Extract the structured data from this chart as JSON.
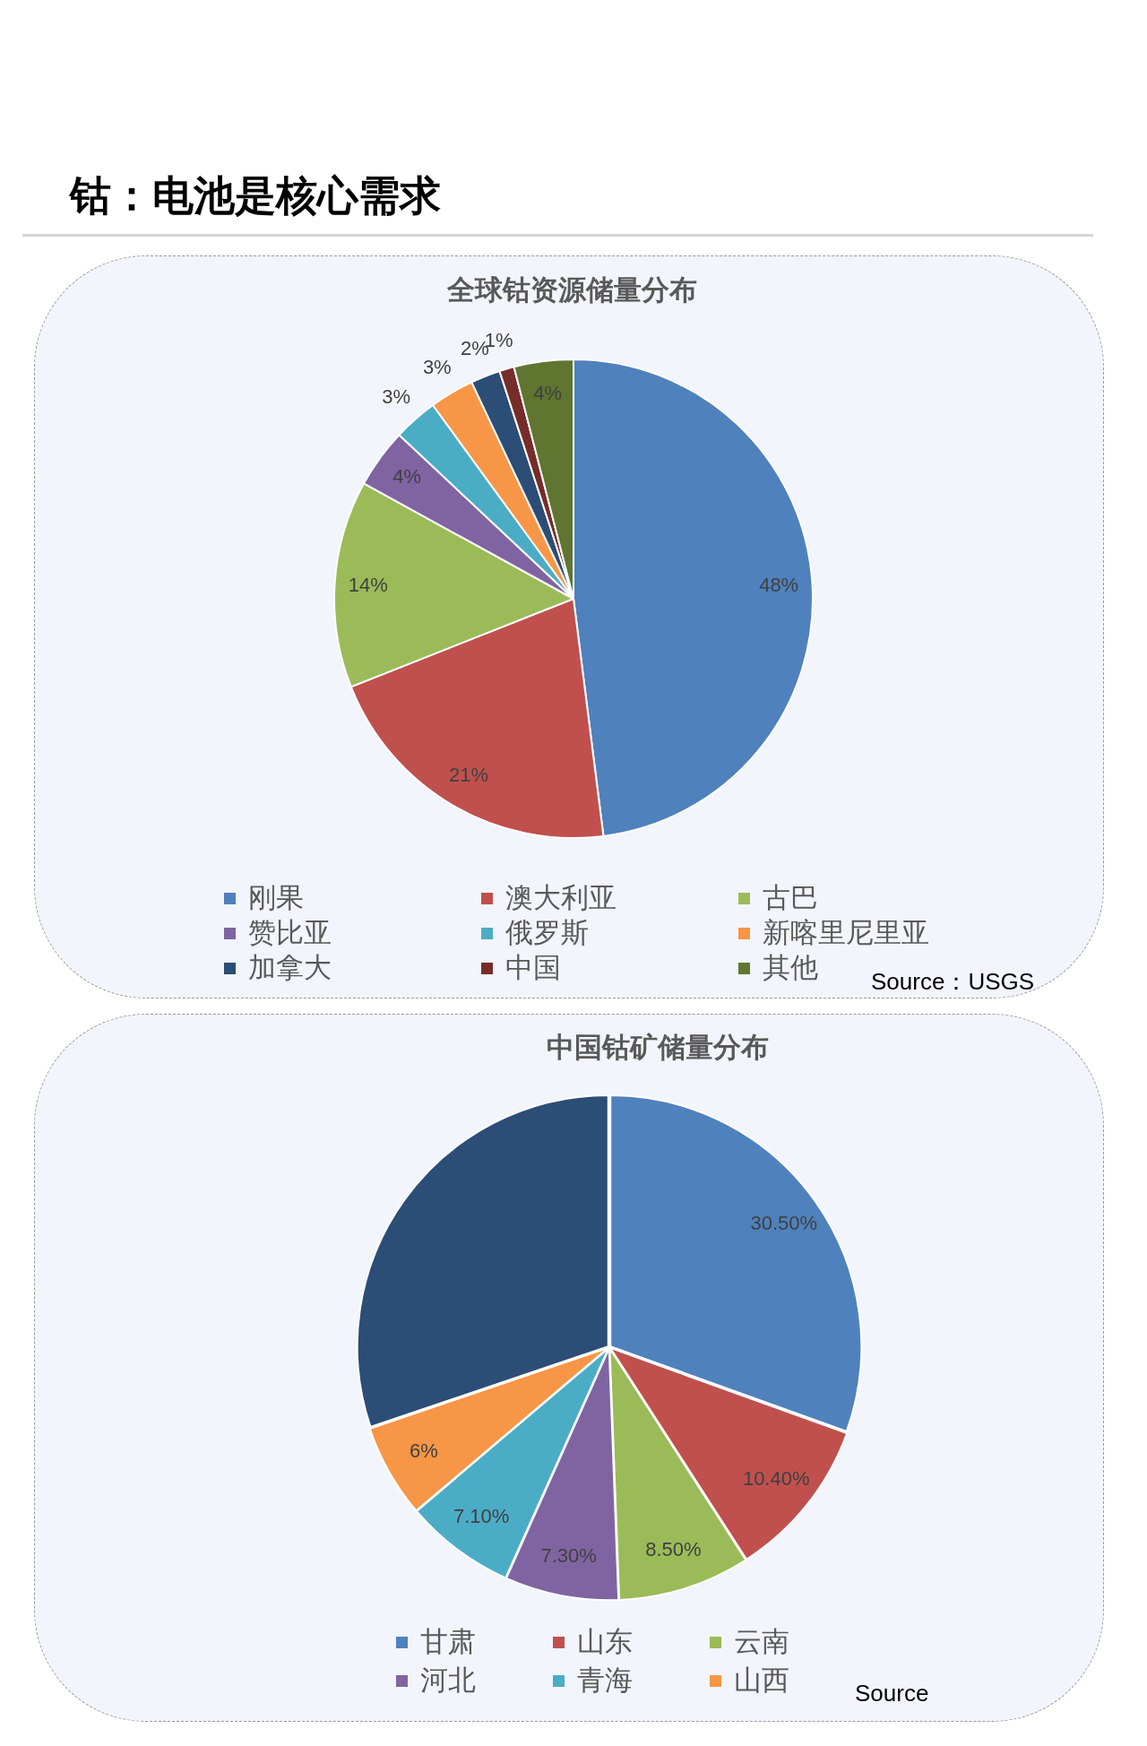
{
  "chart_data": [
    {
      "type": "other",
      "title": "钴：电池是核心需求"
    },
    {
      "type": "pie",
      "title": "全球钴资源储量分布",
      "categories": [
        "刚果",
        "澳大利亚",
        "古巴",
        "赞比亚",
        "俄罗斯",
        "新喀里尼里亚",
        "加拿大",
        "中国",
        "其他"
      ],
      "values": [
        48,
        21,
        14,
        4,
        3,
        3,
        2,
        1,
        4
      ],
      "value_labels": [
        "48%",
        "21%",
        "14%",
        "4%",
        "3%",
        "3%",
        "2%",
        "1%",
        "4%"
      ],
      "colors": [
        "#4f81bd",
        "#c0504d",
        "#9bbb59",
        "#8064a2",
        "#4bacc6",
        "#f79646",
        "#2c4d75",
        "#772c2a",
        "#5f7530"
      ],
      "legend": "bottom",
      "annotations": [
        "Source：USGS"
      ]
    },
    {
      "type": "pie",
      "title": "中国钴矿储量分布",
      "categories": [
        "甘肃",
        "山东",
        "云南",
        "河北",
        "青海",
        "山西",
        null
      ],
      "values": [
        30.5,
        10.4,
        8.5,
        7.3,
        7.1,
        6,
        30.2
      ],
      "value_labels": [
        "30.50%",
        "10.40%",
        "8.50%",
        "7.30%",
        "7.10%",
        "6%",
        null
      ],
      "colors": [
        "#4f81bd",
        "#c0504d",
        "#9bbb59",
        "#8064a2",
        "#4bacc6",
        "#f79646",
        "#2c4d75"
      ],
      "legend": "bottom",
      "annotations": [
        "Source"
      ]
    }
  ]
}
